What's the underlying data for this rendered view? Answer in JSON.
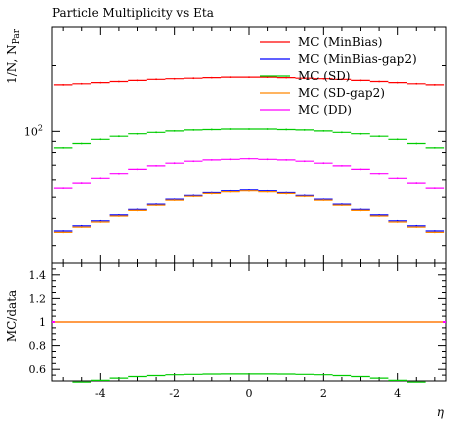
{
  "chart_data": [
    {
      "type": "line",
      "title": "Particle Multiplicity vs Eta",
      "xlabel": "η",
      "ylabel": "1/N, N_Par",
      "ylabel_main": "1/N, N",
      "ylabel_sub": "Par",
      "yscale": "log",
      "xlim": [
        -5.3,
        5.3
      ],
      "ylim": [
        25,
        300
      ],
      "y_major_tick": 100,
      "y_major_tick_label": "10",
      "y_major_tick_exp": "2",
      "legend_position": "top-right",
      "x": [
        -5.0,
        -4.5,
        -4.0,
        -3.5,
        -3.0,
        -2.5,
        -2.0,
        -1.5,
        -1.0,
        -0.5,
        0.0,
        0.5,
        1.0,
        1.5,
        2.0,
        2.5,
        3.0,
        3.5,
        4.0,
        4.5,
        5.0
      ],
      "series": [
        {
          "name": "MC (MinBias)",
          "color": "#ff0000",
          "values": [
            163,
            165,
            167,
            169,
            171,
            173,
            174,
            175,
            176,
            177,
            177,
            177,
            176,
            175,
            174,
            173,
            171,
            169,
            167,
            165,
            163
          ]
        },
        {
          "name": "MC (MinBias-gap2)",
          "color": "#0000ff",
          "values": [
            35,
            37,
            39,
            41.5,
            44,
            46.5,
            49,
            51,
            52.5,
            53.5,
            54,
            53.5,
            52.5,
            51,
            49,
            46.5,
            44,
            41.5,
            39,
            37,
            35
          ]
        },
        {
          "name": "MC (SD)",
          "color": "#00cc00",
          "values": [
            84,
            88,
            92,
            95,
            97.5,
            99,
            100.5,
            101.5,
            102,
            102.5,
            102.5,
            102.5,
            102,
            101.5,
            100.5,
            99,
            97.5,
            95,
            92,
            88,
            84
          ]
        },
        {
          "name": "MC (SD-gap2)",
          "color": "#ff8800",
          "values": [
            34.5,
            36.5,
            38.5,
            41,
            43.5,
            46,
            48.5,
            50.5,
            52,
            53,
            53.5,
            53,
            52,
            50.5,
            48.5,
            46,
            43.5,
            41,
            38.5,
            36.5,
            34.5
          ]
        },
        {
          "name": "MC (DD)",
          "color": "#ff00ff",
          "values": [
            55,
            58,
            61,
            64,
            67,
            69.5,
            71.5,
            73,
            74,
            74.5,
            75,
            74.5,
            74,
            73,
            71.5,
            69.5,
            67,
            64,
            61,
            58,
            55
          ]
        }
      ]
    },
    {
      "type": "line",
      "ylabel": "MC/data",
      "xlabel": "η",
      "xlim": [
        -5.3,
        5.3
      ],
      "ylim": [
        0.5,
        1.5
      ],
      "yticks": [
        0.6,
        0.8,
        1,
        1.2,
        1.4
      ],
      "ytick_labels": [
        "0.6",
        "0.8",
        "1",
        "1.2",
        "1.4"
      ],
      "xticks": [
        -4,
        -2,
        0,
        2,
        4
      ],
      "xtick_labels": [
        "-4",
        "-2",
        "0",
        "2",
        "4"
      ],
      "x": [
        -5.0,
        -4.5,
        -4.0,
        -3.5,
        -3.0,
        -2.5,
        -2.0,
        -1.5,
        -1.0,
        -0.5,
        0.0,
        0.5,
        1.0,
        1.5,
        2.0,
        2.5,
        3.0,
        3.5,
        4.0,
        4.5,
        5.0
      ],
      "series": [
        {
          "color": "#ff0000",
          "values": [
            1,
            1,
            1,
            1,
            1,
            1,
            1,
            1,
            1,
            1,
            1,
            1,
            1,
            1,
            1,
            1,
            1,
            1,
            1,
            1,
            1
          ]
        },
        {
          "color": "#ff8800",
          "values": [
            1,
            1,
            1,
            1,
            1,
            1,
            1,
            1,
            1,
            1,
            1,
            1,
            1,
            1,
            1,
            1,
            1,
            1,
            1,
            1,
            1
          ]
        },
        {
          "color": "#00cc00",
          "values": [
            null,
            0.49,
            0.505,
            0.525,
            0.538,
            0.547,
            0.553,
            0.557,
            0.559,
            0.56,
            0.56,
            0.56,
            0.559,
            0.557,
            0.553,
            0.547,
            0.538,
            0.525,
            0.505,
            0.49,
            null
          ]
        }
      ]
    }
  ]
}
